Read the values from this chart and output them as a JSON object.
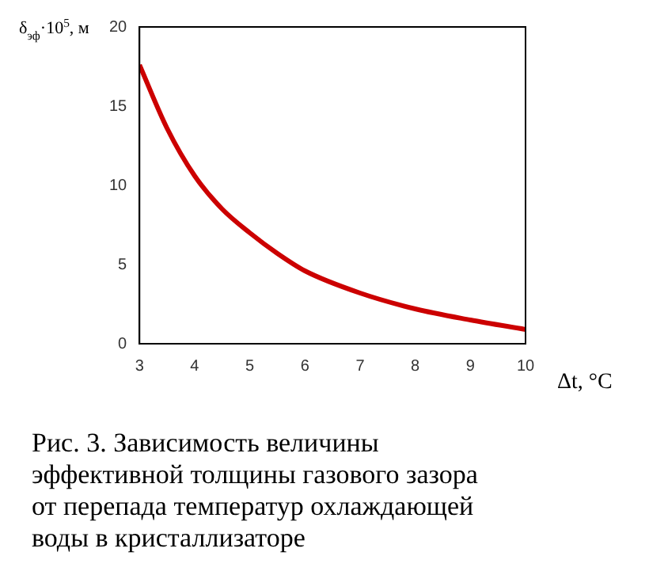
{
  "chart_data": {
    "type": "line",
    "xlabel": "Δt, °C",
    "ylabel": "δ$_{эф}$·10$^{5}$, м",
    "annotations": [
      "Рис. 3.  Зависимость величины эффективной толщины газового зазора от перепада температур охлаждающей воды в кристаллизаторе"
    ],
    "series": [
      {
        "color": "#cc0000",
        "x": [
          3,
          3.5,
          4,
          4.5,
          5,
          5.5,
          6,
          7,
          8,
          9,
          10
        ],
        "values": [
          17.6,
          13.6,
          10.6,
          8.5,
          7.0,
          5.7,
          4.6,
          3.2,
          2.2,
          1.5,
          0.9
        ]
      }
    ],
    "xlim": [
      3,
      10
    ],
    "xticks": [
      3,
      4,
      5,
      6,
      7,
      8,
      9,
      10
    ],
    "ylim": [
      0,
      20
    ],
    "yticks": [
      0,
      5,
      10,
      15,
      20
    ],
    "marker": "none",
    "line_style": "solid"
  }
}
